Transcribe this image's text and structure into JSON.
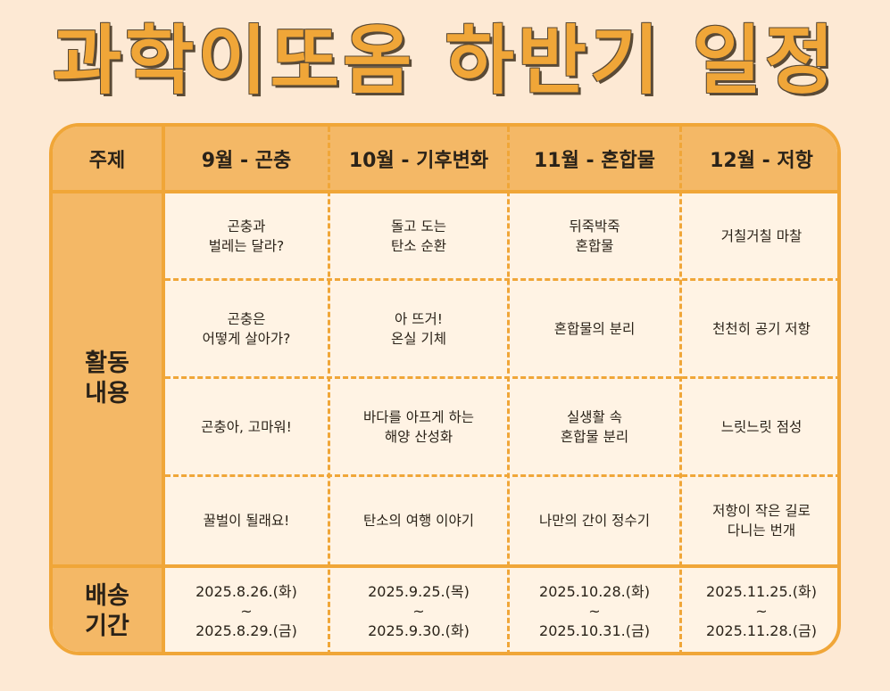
{
  "title": "과학이또옴 하반기 일정",
  "header": {
    "topic": "주제",
    "months": [
      "9월 - 곤충",
      "10월 - 기후변화",
      "11월 - 혼합물",
      "12월 - 저항"
    ]
  },
  "activities": {
    "label": "활동\n내용",
    "rows": [
      [
        "곤충과\n벌레는 달라?",
        "돌고 도는\n탄소 순환",
        "뒤죽박죽\n혼합물",
        "거칠거칠 마찰"
      ],
      [
        "곤충은\n어떻게 살아가?",
        "아 뜨거!\n온실 기체",
        "혼합물의 분리",
        "천천히 공기 저항"
      ],
      [
        "곤충아, 고마워!",
        "바다를 아프게 하는\n해양 산성화",
        "실생활 속\n혼합물 분리",
        "느릿느릿 점성"
      ],
      [
        "꿀벌이 될래요!",
        "탄소의 여행 이야기",
        "나만의 간이 정수기",
        "저항이 작은 길로\n다니는 번개"
      ]
    ]
  },
  "delivery": {
    "label": "배송\n기간",
    "periods": [
      "2025.8.26.(화)\n~\n2025.8.29.(금)",
      "2025.9.25.(목)\n~\n2025.9.30.(화)",
      "2025.10.28.(화)\n~\n2025.10.31.(금)",
      "2025.11.25.(화)\n~\n2025.11.28.(금)"
    ]
  },
  "colors": {
    "background": "#fde9d4",
    "accent": "#f0a638",
    "header_fill": "#f4b866",
    "cell_fill": "#fff3e4",
    "text": "#2a2218"
  }
}
